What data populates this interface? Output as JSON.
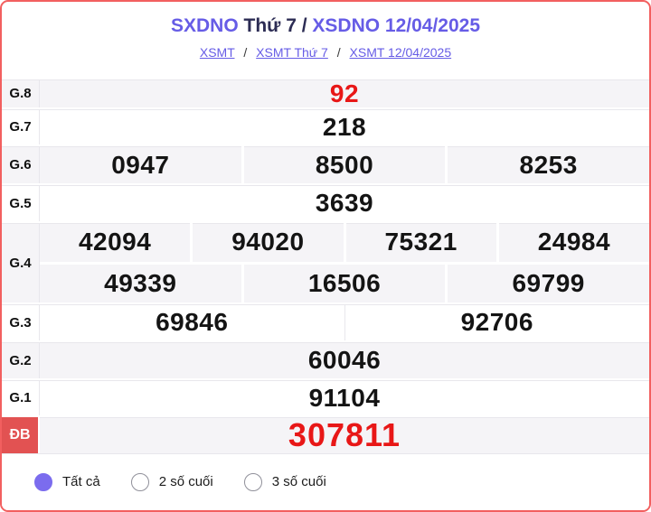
{
  "header": {
    "title_part1": "SXDNO",
    "title_part2": "Thứ 7 /",
    "title_part3": "XSDNO 12/04/2025"
  },
  "breadcrumb": {
    "separator": "/",
    "links": [
      "XSMT",
      "XSMT Thứ 7",
      "XSMT 12/04/2025"
    ]
  },
  "table": {
    "rows": [
      {
        "label": "G.8",
        "cells": [
          "92"
        ]
      },
      {
        "label": "G.7",
        "cells": [
          "218"
        ]
      },
      {
        "label": "G.6",
        "cells": [
          "0947",
          "8500",
          "8253"
        ]
      },
      {
        "label": "G.5",
        "cells": [
          "3639"
        ]
      },
      {
        "label": "G.4",
        "cells": [
          "42094",
          "94020",
          "75321",
          "24984"
        ],
        "cells2": [
          "49339",
          "16506",
          "69799"
        ]
      },
      {
        "label": "G.3",
        "cells": [
          "69846",
          "92706"
        ]
      },
      {
        "label": "G.2",
        "cells": [
          "60046"
        ]
      },
      {
        "label": "G.1",
        "cells": [
          "91104"
        ]
      },
      {
        "label": "ĐB",
        "cells": [
          "307811"
        ]
      }
    ]
  },
  "filters": {
    "options": [
      {
        "label": "Tất cả",
        "selected": true
      },
      {
        "label": "2 số cuối",
        "selected": false
      },
      {
        "label": "3 số cuối",
        "selected": false
      }
    ]
  },
  "colors": {
    "frame-border": "#f25f5f",
    "accent-purple": "#665ce6",
    "title-dark": "#2c2c54",
    "row-gray": "#f5f4f7",
    "value-red": "#e81717",
    "badge-red": "#e25252",
    "radio-fill": "#7b6cee"
  }
}
